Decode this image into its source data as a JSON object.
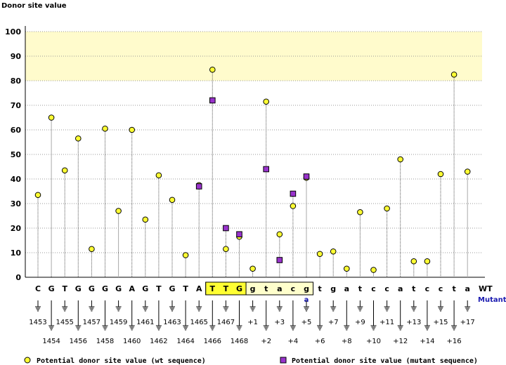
{
  "chart_data": {
    "type": "scatter",
    "title": "",
    "ylabel": "Donor site value",
    "ylim": [
      0,
      100
    ],
    "yticks": [
      0,
      10,
      20,
      30,
      40,
      50,
      60,
      70,
      80,
      90,
      100
    ],
    "highlight_band": [
      80,
      100
    ],
    "wt_row_label": "WT",
    "mutant_row_label": "Mutant",
    "positions": [
      {
        "base": "C",
        "label": "1453",
        "wt": 33.5
      },
      {
        "base": "G",
        "label": "1454",
        "wt": 65
      },
      {
        "base": "T",
        "label": "1455",
        "wt": 43.5
      },
      {
        "base": "G",
        "label": "1456",
        "wt": 56.5
      },
      {
        "base": "G",
        "label": "1457",
        "wt": 11.5
      },
      {
        "base": "G",
        "label": "1458",
        "wt": 60.5
      },
      {
        "base": "G",
        "label": "1459",
        "wt": 27
      },
      {
        "base": "A",
        "label": "1460",
        "wt": 60
      },
      {
        "base": "G",
        "label": "1461",
        "wt": 23.5
      },
      {
        "base": "T",
        "label": "1462",
        "wt": 41.5
      },
      {
        "base": "G",
        "label": "1463",
        "wt": 31.5
      },
      {
        "base": "T",
        "label": "1464",
        "wt": 9
      },
      {
        "base": "A",
        "label": "1465",
        "wt": 37.5,
        "mut": 37
      },
      {
        "base": "T",
        "label": "1466",
        "wt": 84.5,
        "mut": 72
      },
      {
        "base": "T",
        "label": "1467",
        "wt": 11.5,
        "mut": 20
      },
      {
        "base": "G",
        "label": "1468",
        "wt": 16.5,
        "mut": 17.5
      },
      {
        "base": "g",
        "label": "+1",
        "wt": 3.5
      },
      {
        "base": "t",
        "label": "+2",
        "wt": 71.5,
        "mut": 44
      },
      {
        "base": "a",
        "label": "+3",
        "wt": 17.5,
        "mut": 7
      },
      {
        "base": "c",
        "label": "+4",
        "wt": 29,
        "mut": 34
      },
      {
        "base": "g",
        "label": "+5",
        "wt": 40.5,
        "mut": 41
      },
      {
        "base": "t",
        "label": "+6",
        "wt": 9.5
      },
      {
        "base": "g",
        "label": "+7",
        "wt": 10.5
      },
      {
        "base": "a",
        "label": "+8",
        "wt": 3.5
      },
      {
        "base": "t",
        "label": "+9",
        "wt": 26.5
      },
      {
        "base": "c",
        "label": "+10",
        "wt": 3
      },
      {
        "base": "c",
        "label": "+11",
        "wt": 28
      },
      {
        "base": "a",
        "label": "+12",
        "wt": 48
      },
      {
        "base": "t",
        "label": "+13",
        "wt": 6.5
      },
      {
        "base": "c",
        "label": "+14",
        "wt": 6.5
      },
      {
        "base": "c",
        "label": "+15",
        "wt": 42
      },
      {
        "base": "t",
        "label": "+16",
        "wt": 82.5
      },
      {
        "base": "a",
        "label": "+17",
        "wt": 43
      }
    ],
    "highlighted_range": [
      13,
      20
    ],
    "mutant_bases": [
      {
        "index": 20,
        "base": "a"
      }
    ],
    "legend": {
      "wt": "Potential donor site value (wt sequence)",
      "mutant": "Potential donor site value (mutant sequence)"
    },
    "colors": {
      "wt_marker": "#ffff33",
      "mut_marker": "#9933cc",
      "band": "#fffbcc",
      "box": "#ffffcc",
      "exon_box": "#ffff33",
      "mutant_text": "#1a1ab0"
    }
  }
}
